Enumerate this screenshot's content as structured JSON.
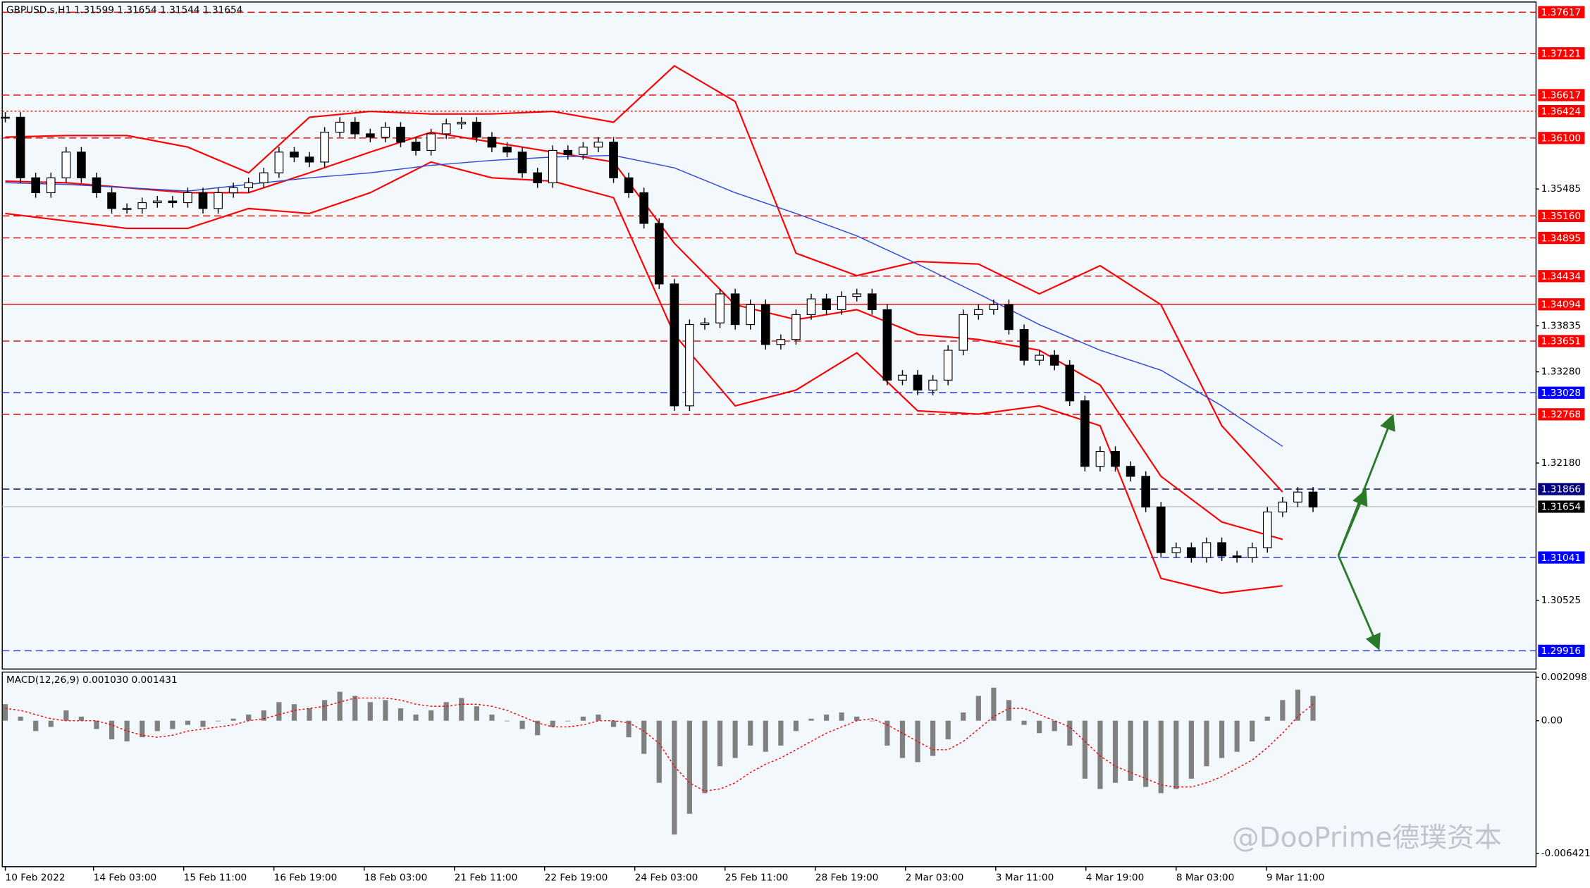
{
  "chart_data": {
    "type": "candlestick",
    "title": "GBPUSD.s,H1  1.31599 1.31654 1.31544 1.31654",
    "ylim": [
      1.29696,
      1.37764
    ],
    "yticks": [
      {
        "value": 1.35485,
        "label": "1.35485"
      },
      {
        "value": 1.33835,
        "label": "1.33835"
      },
      {
        "value": 1.3328,
        "label": "1.33280"
      },
      {
        "value": 1.3218,
        "label": "1.32180"
      },
      {
        "value": 1.30525,
        "label": "1.30525"
      }
    ],
    "xtick_labels": [
      "10 Feb 2022",
      "14 Feb 03:00",
      "15 Feb 11:00",
      "16 Feb 19:00",
      "18 Feb 03:00",
      "21 Feb 11:00",
      "22 Feb 19:00",
      "24 Feb 03:00",
      "25 Feb 11:00",
      "28 Feb 19:00",
      "2 Mar 03:00",
      "3 Mar 11:00",
      "4 Mar 19:00",
      "8 Mar 03:00",
      "9 Mar 11:00"
    ],
    "close": [
      1.3635,
      1.3562,
      1.3544,
      1.3562,
      1.3593,
      1.3562,
      1.3544,
      1.3525,
      1.3525,
      1.3532,
      1.3534,
      1.3532,
      1.3544,
      1.3525,
      1.3544,
      1.355,
      1.3556,
      1.3568,
      1.3593,
      1.3587,
      1.3581,
      1.3617,
      1.3629,
      1.3615,
      1.3611,
      1.3623,
      1.3605,
      1.3595,
      1.3615,
      1.3627,
      1.3629,
      1.3611,
      1.3599,
      1.3593,
      1.3568,
      1.3556,
      1.3595,
      1.359,
      1.3599,
      1.3605,
      1.3562,
      1.3544,
      1.3507,
      1.3434,
      1.3287,
      1.3385,
      1.3387,
      1.3422,
      1.3385,
      1.3409,
      1.3361,
      1.3367,
      1.3397,
      1.3416,
      1.3403,
      1.3419,
      1.3422,
      1.3403,
      1.3318,
      1.3324,
      1.3306,
      1.3318,
      1.3354,
      1.3397,
      1.3403,
      1.3409,
      1.3379,
      1.3342,
      1.3348,
      1.3336,
      1.3293,
      1.3214,
      1.3232,
      1.3214,
      1.3202,
      1.3165,
      1.311,
      1.3116,
      1.3104,
      1.3122,
      1.3106,
      1.3104,
      1.3116,
      1.3159,
      1.3171,
      1.3183,
      1.3165
    ],
    "bands": [
      {
        "color": "#ff0000",
        "values": [
          1.3611,
          1.3613,
          1.3613,
          1.3599,
          1.3568,
          1.3635,
          1.3642,
          1.3639,
          1.3639,
          1.3642,
          1.3629,
          1.3697,
          1.3654,
          1.3471,
          1.3444,
          1.3461,
          1.3458,
          1.3422,
          1.3456,
          1.3409,
          1.3263,
          1.3183
        ]
      },
      {
        "color": "#ff0000",
        "values": [
          1.3558,
          1.3556,
          1.355,
          1.3544,
          1.3544,
          1.3568,
          1.3593,
          1.3617,
          1.3605,
          1.3593,
          1.3581,
          1.3483,
          1.3409,
          1.3391,
          1.3403,
          1.3373,
          1.3367,
          1.3354,
          1.3312,
          1.3202,
          1.3147,
          1.3126
        ]
      },
      {
        "color": "#ff0000",
        "values": [
          1.3519,
          1.351,
          1.3501,
          1.3501,
          1.3525,
          1.3519,
          1.3544,
          1.3581,
          1.3562,
          1.3558,
          1.3538,
          1.3373,
          1.3287,
          1.3306,
          1.3351,
          1.3281,
          1.3277,
          1.3287,
          1.3263,
          1.3079,
          1.3061,
          1.307
        ]
      },
      {
        "color": "#3048d8",
        "values": [
          1.3556,
          1.3554,
          1.355,
          1.3546,
          1.3554,
          1.3562,
          1.3568,
          1.3577,
          1.3583,
          1.3587,
          1.3589,
          1.3574,
          1.3544,
          1.3519,
          1.3492,
          1.3458,
          1.3422,
          1.3385,
          1.3354,
          1.333,
          1.3287,
          1.3238
        ]
      }
    ],
    "levels": [
      {
        "value": 1.37617,
        "label": "1.37617",
        "color": "#ff0000",
        "line_color": "#e00000",
        "style": "dashed"
      },
      {
        "value": 1.37121,
        "label": "1.37121",
        "color": "#ff0000",
        "line_color": "#e00000",
        "style": "dashed"
      },
      {
        "value": 1.36617,
        "label": "1.36617",
        "color": "#ff0000",
        "line_color": "#e00000",
        "style": "dashed"
      },
      {
        "value": 1.36424,
        "label": "1.36424",
        "color": "#ff0000",
        "line_color": "#e00000",
        "style": "dotted"
      },
      {
        "value": 1.361,
        "label": "1.36100",
        "color": "#ff0000",
        "line_color": "#e00000",
        "style": "dashed"
      },
      {
        "value": 1.3516,
        "label": "1.35160",
        "color": "#ff0000",
        "line_color": "#e00000",
        "style": "dashed"
      },
      {
        "value": 1.34895,
        "label": "1.34895",
        "color": "#ff0000",
        "line_color": "#e00000",
        "style": "dashed"
      },
      {
        "value": 1.34434,
        "label": "1.34434",
        "color": "#ff0000",
        "line_color": "#e00000",
        "style": "dashed"
      },
      {
        "value": 1.34094,
        "label": "1.34094",
        "color": "#ff0000",
        "line_color": "#e00000",
        "style": "solid"
      },
      {
        "value": 1.33651,
        "label": "1.33651",
        "color": "#ff0000",
        "line_color": "#e00000",
        "style": "dashed"
      },
      {
        "value": 1.33028,
        "label": "1.33028",
        "color": "#0000ff",
        "line_color": "#2030d0",
        "style": "dashed"
      },
      {
        "value": 1.32768,
        "label": "1.32768",
        "color": "#ff0000",
        "line_color": "#e00000",
        "style": "dashed"
      },
      {
        "value": 1.31866,
        "label": "1.31866",
        "color": "#000080",
        "line_color": "#101060",
        "style": "dashed"
      },
      {
        "value": 1.31654,
        "label": "1.31654",
        "color": "#000000",
        "line_color": "#c0c0c0",
        "style": "solid"
      },
      {
        "value": 1.31041,
        "label": "1.31041",
        "color": "#0000ff",
        "line_color": "#2030d0",
        "style": "dashed"
      },
      {
        "value": 1.29916,
        "label": "1.29916",
        "color": "#0000ff",
        "line_color": "#2030d0",
        "style": "dashed"
      }
    ],
    "macd": {
      "title": "MACD(12,26,9) 0.001030 0.001431",
      "ylim": [
        -0.007056,
        0.002352
      ],
      "yticks": [
        0.002098,
        {
          "value": 0,
          "label": "0.00"
        },
        -0.006421
      ],
      "histogram": [
        0.0008,
        0.0002,
        -0.0005,
        -0.0003,
        0.0005,
        0.0002,
        -0.0004,
        -0.0009,
        -0.001,
        -0.0008,
        -0.0005,
        -0.0004,
        -0.0002,
        -0.0003,
        0,
        0.0001,
        0.0003,
        0.0005,
        0.0009,
        0.0008,
        0.0006,
        0.001,
        0.0014,
        0.0012,
        0.0009,
        0.001,
        0.0006,
        0.0003,
        0.0005,
        0.0009,
        0.0011,
        0.0007,
        0.0003,
        0,
        -0.0004,
        -0.0007,
        -0.0003,
        0,
        0.0002,
        0.0003,
        -0.0003,
        -0.0008,
        -0.0016,
        -0.003,
        -0.0055,
        -0.0045,
        -0.0035,
        -0.0022,
        -0.0018,
        -0.0012,
        -0.0015,
        -0.0012,
        -0.0005,
        0.0001,
        0.0003,
        0.0004,
        0.0002,
        0,
        -0.0012,
        -0.0018,
        -0.002,
        -0.0017,
        -0.0009,
        0.0004,
        0.0012,
        0.0016,
        0.001,
        -0.0002,
        -0.0006,
        -0.0005,
        -0.0012,
        -0.0028,
        -0.0033,
        -0.003,
        -0.0029,
        -0.0032,
        -0.0035,
        -0.0033,
        -0.0028,
        -0.0022,
        -0.0018,
        -0.0015,
        -0.001,
        0.0002,
        0.001,
        0.0015,
        0.0012
      ],
      "signal": [
        0.0006,
        0.0005,
        0.0003,
        0.0001,
        0,
        0,
        0,
        -0.0002,
        -0.0005,
        -0.0007,
        -0.0008,
        -0.0007,
        -0.0005,
        -0.0004,
        -0.0003,
        -0.0002,
        0,
        0.0001,
        0.0003,
        0.0005,
        0.0006,
        0.0007,
        0.0009,
        0.0011,
        0.0011,
        0.0011,
        0.001,
        0.0008,
        0.0007,
        0.0007,
        0.0008,
        0.0008,
        0.0007,
        0.0005,
        0.0002,
        -0.0001,
        -0.0003,
        -0.0003,
        -0.0002,
        0,
        0,
        -0.0001,
        -0.0005,
        -0.0011,
        -0.0022,
        -0.003,
        -0.0034,
        -0.0033,
        -0.003,
        -0.0025,
        -0.0021,
        -0.0018,
        -0.0014,
        -0.001,
        -0.0006,
        -0.0003,
        0,
        0.0001,
        -0.0002,
        -0.0006,
        -0.001,
        -0.0014,
        -0.0014,
        -0.001,
        -0.0004,
        0.0002,
        0.0006,
        0.0006,
        0.0003,
        0,
        -0.0003,
        -0.001,
        -0.0017,
        -0.0022,
        -0.0025,
        -0.0028,
        -0.0031,
        -0.0032,
        -0.0032,
        -0.003,
        -0.0027,
        -0.0023,
        -0.0019,
        -0.0013,
        -0.0006,
        0.0002,
        0.0008
      ],
      "hist_color": "#808080",
      "signal_color": "#ff0000"
    },
    "watermark": "@DooPrime德璞资本"
  }
}
